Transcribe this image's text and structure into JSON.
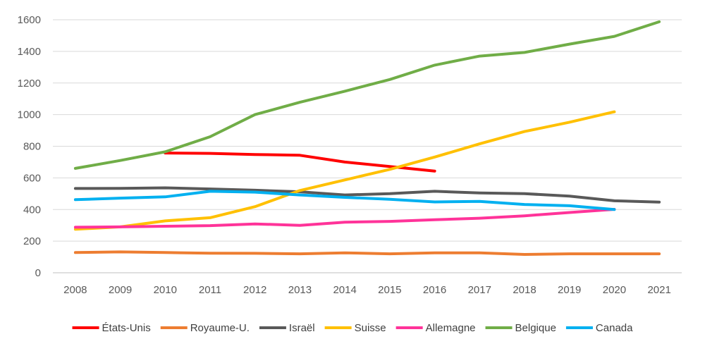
{
  "chart_data": {
    "type": "line",
    "title": "",
    "xlabel": "",
    "ylabel": "",
    "x": [
      "2008",
      "2009",
      "2010",
      "2011",
      "2012",
      "2013",
      "2014",
      "2015",
      "2016",
      "2017",
      "2018",
      "2019",
      "2020",
      "2021"
    ],
    "ylim": [
      0,
      1600
    ],
    "yticks": [
      0,
      200,
      400,
      600,
      800,
      1000,
      1200,
      1400,
      1600
    ],
    "grid": true,
    "legend_position": "bottom",
    "series": [
      {
        "name": "États-Unis",
        "color": "#ff0000",
        "values": [
          null,
          null,
          757,
          755,
          748,
          743,
          700,
          672,
          643,
          null,
          null,
          null,
          null,
          null
        ]
      },
      {
        "name": "Royaume-U.",
        "color": "#ed7d31",
        "values": [
          128,
          132,
          128,
          124,
          123,
          120,
          126,
          120,
          126,
          126,
          116,
          120,
          120,
          120
        ]
      },
      {
        "name": "Israël",
        "color": "#595959",
        "values": [
          533,
          534,
          537,
          530,
          522,
          512,
          492,
          500,
          515,
          505,
          500,
          485,
          455,
          447
        ]
      },
      {
        "name": "Suisse",
        "color": "#ffc000",
        "values": [
          275,
          290,
          328,
          348,
          418,
          520,
          587,
          654,
          732,
          815,
          893,
          952,
          1018,
          null
        ]
      },
      {
        "name": "Allemagne",
        "color": "#ff3399",
        "values": [
          288,
          290,
          294,
          298,
          309,
          300,
          320,
          325,
          335,
          345,
          360,
          381,
          401,
          null
        ]
      },
      {
        "name": "Belgique",
        "color": "#70ad47",
        "values": [
          660,
          710,
          765,
          860,
          1000,
          1078,
          1148,
          1222,
          1313,
          1370,
          1393,
          1446,
          1495,
          1587
        ]
      },
      {
        "name": "Canada",
        "color": "#00b0f0",
        "values": [
          462,
          472,
          480,
          515,
          510,
          492,
          477,
          465,
          448,
          451,
          432,
          424,
          400,
          null
        ]
      }
    ]
  }
}
